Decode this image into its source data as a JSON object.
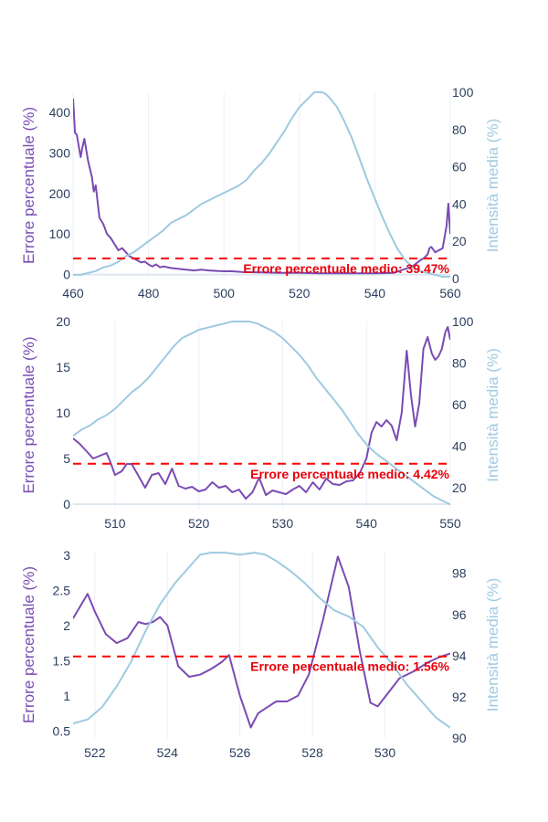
{
  "colors": {
    "error_line": "#7b4bb3",
    "intensity_line": "#9ecae1",
    "mean_line": "#ff0000",
    "mean_text": "#e8000b",
    "grid": "#ebf0f8",
    "zeroline": "#dfe6f0",
    "tick_text": "#2a3f5f"
  },
  "chart_data": [
    {
      "type": "line",
      "xlim": [
        460,
        560
      ],
      "ylim_left": [
        -10,
        450
      ],
      "ylim_right": [
        0,
        100
      ],
      "x_ticks": [
        460,
        480,
        500,
        520,
        540,
        560
      ],
      "y_left_ticks": [
        0,
        100,
        200,
        300,
        400
      ],
      "y_right_ticks": [
        0,
        20,
        40,
        60,
        80,
        100
      ],
      "x_tick_labels": [
        "460",
        "480",
        "500",
        "520",
        "540",
        "560"
      ],
      "y_left_tick_labels": [
        "0",
        "100",
        "200",
        "300",
        "400"
      ],
      "y_right_tick_labels": [
        "0",
        "20",
        "40",
        "60",
        "80",
        "100"
      ],
      "ylabel_left": "Errore percentuale (%)",
      "ylabel_right": "Intensità media (%)",
      "mean_value": 39.47,
      "mean_label": "Errore percentuale medio: 39.47%",
      "series": [
        {
          "role": "error",
          "x": [
            460,
            460.5,
            461,
            462,
            462.5,
            463,
            464,
            465,
            465.5,
            466,
            467,
            468,
            469,
            470,
            471,
            472,
            473,
            474,
            475,
            476,
            477,
            478,
            479,
            480,
            481,
            482,
            483,
            484,
            485,
            486,
            488,
            490,
            492,
            494,
            496,
            498,
            500,
            502,
            505,
            510,
            515,
            520,
            525,
            530,
            535,
            540,
            545,
            550,
            552,
            553,
            554,
            554.5,
            555,
            556,
            557,
            558,
            559,
            559.5,
            560
          ],
          "y": [
            435,
            350,
            345,
            290,
            315,
            335,
            280,
            240,
            205,
            220,
            140,
            125,
            100,
            90,
            75,
            60,
            65,
            55,
            45,
            40,
            35,
            30,
            32,
            25,
            20,
            25,
            18,
            20,
            18,
            16,
            14,
            12,
            10,
            12,
            10,
            9,
            8,
            8,
            6,
            5,
            4,
            4,
            3,
            3,
            3,
            3,
            4,
            20,
            35,
            40,
            50,
            65,
            68,
            55,
            60,
            65,
            120,
            175,
            100
          ]
        },
        {
          "role": "intensity",
          "x": [
            460,
            462,
            464,
            466,
            468,
            470,
            472,
            474,
            476,
            478,
            480,
            482,
            484,
            486,
            488,
            490,
            492,
            494,
            496,
            498,
            500,
            502,
            504,
            506,
            508,
            510,
            512,
            514,
            516,
            518,
            520,
            522,
            524,
            525,
            526,
            527,
            528,
            530,
            532,
            534,
            536,
            538,
            540,
            542,
            544,
            546,
            548,
            550,
            552,
            554,
            556,
            558,
            560
          ],
          "y": [
            2,
            2,
            3,
            4,
            6,
            7,
            9,
            12,
            14,
            17,
            20,
            23,
            26,
            30,
            32,
            34,
            37,
            40,
            42,
            44,
            46,
            48,
            50,
            53,
            58,
            62,
            67,
            73,
            79,
            86,
            92,
            96,
            100,
            100,
            100,
            99,
            97,
            92,
            84,
            75,
            64,
            53,
            43,
            33,
            24,
            16,
            10,
            6,
            4,
            3,
            2,
            1,
            1
          ]
        }
      ]
    },
    {
      "type": "line",
      "xlim": [
        505,
        550
      ],
      "ylim_left": [
        -0.5,
        20
      ],
      "ylim_right": [
        10,
        100
      ],
      "x_ticks": [
        510,
        520,
        530,
        540,
        550
      ],
      "y_left_ticks": [
        0,
        5,
        10,
        15,
        20
      ],
      "y_right_ticks": [
        20,
        40,
        60,
        80,
        100
      ],
      "x_tick_labels": [
        "510",
        "520",
        "530",
        "540",
        "550"
      ],
      "y_left_tick_labels": [
        "0",
        "5",
        "10",
        "15",
        "20"
      ],
      "y_right_tick_labels": [
        "20",
        "40",
        "60",
        "80",
        "100"
      ],
      "ylabel_left": "Errore percentuale (%)",
      "ylabel_right": "Intensità media (%)",
      "mean_value": 4.42,
      "mean_label": "Errore percentuale medio: 4.42%",
      "series": [
        {
          "role": "error",
          "x": [
            505,
            505.8,
            506.6,
            507.4,
            508.2,
            509,
            509.5,
            510,
            510.8,
            511.4,
            512,
            512.8,
            513.6,
            514.4,
            515.2,
            516,
            516.8,
            517.6,
            518.4,
            519.2,
            520,
            520.8,
            521.6,
            522.4,
            523.2,
            524,
            524.8,
            525.6,
            526.4,
            527.2,
            528,
            528.8,
            529.6,
            530.4,
            531.2,
            532,
            532.8,
            533.6,
            534.4,
            535.2,
            536,
            536.8,
            537.6,
            538.4,
            539.2,
            540,
            540.6,
            541.2,
            541.8,
            542.4,
            543,
            543.6,
            544.2,
            544.8,
            545.3,
            545.8,
            546.3,
            546.8,
            547.3,
            547.8,
            548.2,
            548.6,
            549,
            549.4,
            549.7,
            550
          ],
          "y": [
            7.2,
            6.6,
            5.8,
            5.0,
            5.3,
            5.6,
            4.5,
            3.2,
            3.6,
            4.4,
            4.4,
            3.1,
            1.8,
            3.2,
            3.4,
            2.2,
            3.9,
            2.0,
            1.7,
            1.9,
            1.4,
            1.6,
            2.4,
            1.8,
            2.0,
            1.3,
            1.6,
            0.6,
            1.3,
            2.9,
            1.0,
            1.5,
            1.3,
            1.1,
            1.6,
            2.0,
            1.3,
            2.4,
            1.6,
            2.8,
            2.2,
            2.1,
            2.5,
            2.6,
            3.4,
            5.0,
            7.8,
            9.0,
            8.5,
            9.2,
            8.6,
            7.0,
            10.0,
            16.8,
            12.0,
            8.5,
            11.0,
            17.0,
            18.3,
            16.5,
            15.8,
            16.2,
            17.0,
            18.8,
            19.4,
            18.0
          ]
        },
        {
          "role": "intensity",
          "x": [
            505,
            506,
            507,
            508,
            509,
            510,
            511,
            512,
            513,
            514,
            515,
            516,
            517,
            518,
            519,
            520,
            521,
            522,
            523,
            524,
            525,
            526,
            527,
            528,
            529,
            530,
            531,
            532,
            533,
            534,
            535,
            536,
            537,
            538,
            539,
            540,
            541,
            542,
            543,
            544,
            545,
            546,
            547,
            548,
            549,
            550
          ],
          "y": [
            45,
            48,
            50,
            53,
            55,
            58,
            62,
            66,
            69,
            73,
            78,
            83,
            88,
            92,
            94,
            96,
            97,
            98,
            99,
            100,
            100,
            100,
            99,
            97,
            95,
            92,
            88,
            84,
            79,
            73,
            68,
            63,
            58,
            52,
            46,
            41,
            37,
            34,
            31,
            28,
            25,
            22,
            19,
            16,
            14,
            12
          ]
        }
      ]
    },
    {
      "type": "line",
      "xlim": [
        521.4,
        531.8
      ],
      "ylim_left": [
        0.4,
        3.05
      ],
      "ylim_right": [
        90,
        99.05
      ],
      "x_ticks": [
        522,
        524,
        526,
        528,
        530
      ],
      "y_left_ticks": [
        0.5,
        1,
        1.5,
        2,
        2.5,
        3
      ],
      "y_right_ticks": [
        90,
        92,
        94,
        96,
        98
      ],
      "x_tick_labels": [
        "522",
        "524",
        "526",
        "528",
        "530"
      ],
      "y_left_tick_labels": [
        "0.5",
        "1",
        "1.5",
        "2",
        "2.5",
        "3"
      ],
      "y_right_tick_labels": [
        "90",
        "92",
        "94",
        "96",
        "98"
      ],
      "ylabel_left": "Errore percentuale (%)",
      "ylabel_right": "Intensità media (%)",
      "mean_value": 1.56,
      "mean_label": "Errore percentuale medio: 1.56%",
      "series": [
        {
          "role": "error",
          "x": [
            521.4,
            521.8,
            522.0,
            522.3,
            522.6,
            522.9,
            523.2,
            523.4,
            523.6,
            523.8,
            524.0,
            524.3,
            524.6,
            524.9,
            525.2,
            525.5,
            525.7,
            526.0,
            526.3,
            526.5,
            526.7,
            527.0,
            527.3,
            527.6,
            527.9,
            528.3,
            528.7,
            529.0,
            529.3,
            529.6,
            529.8,
            530.1,
            530.4,
            530.8,
            531.2,
            531.5,
            531.8
          ],
          "y": [
            2.1,
            2.45,
            2.2,
            1.88,
            1.75,
            1.82,
            2.05,
            2.02,
            2.05,
            2.12,
            2.0,
            1.42,
            1.27,
            1.3,
            1.38,
            1.48,
            1.58,
            1.0,
            0.55,
            0.75,
            0.82,
            0.92,
            0.92,
            1.0,
            1.3,
            2.1,
            2.98,
            2.55,
            1.65,
            0.9,
            0.85,
            1.05,
            1.25,
            1.35,
            1.48,
            1.55,
            1.6
          ]
        },
        {
          "role": "intensity",
          "x": [
            521.4,
            521.8,
            522.2,
            522.6,
            523.0,
            523.4,
            523.8,
            524.2,
            524.6,
            524.9,
            525.2,
            525.6,
            526.0,
            526.4,
            526.7,
            527.0,
            527.4,
            527.8,
            528.2,
            528.6,
            529.0,
            529.4,
            529.8,
            530.2,
            530.6,
            531.0,
            531.4,
            531.8
          ],
          "y": [
            90.7,
            90.9,
            91.5,
            92.5,
            93.7,
            95.2,
            96.5,
            97.5,
            98.3,
            98.9,
            99.0,
            99.0,
            98.9,
            99.0,
            98.9,
            98.6,
            98.1,
            97.5,
            96.8,
            96.2,
            95.9,
            95.4,
            94.4,
            93.6,
            92.6,
            91.8,
            91.0,
            90.5
          ]
        }
      ]
    }
  ]
}
